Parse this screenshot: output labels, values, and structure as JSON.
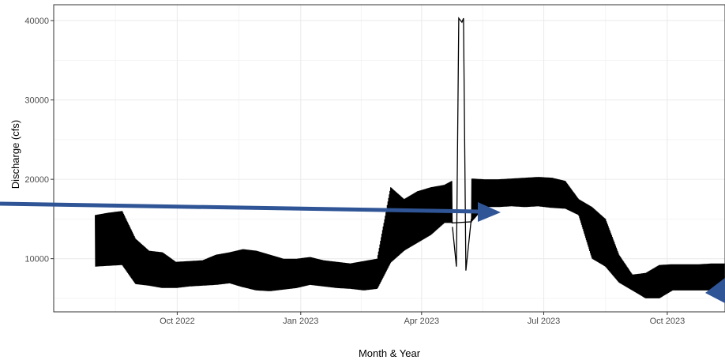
{
  "chart_data": {
    "type": "line",
    "title": "",
    "xlabel": "Month & Year",
    "ylabel": "Discharge (cfs)",
    "x_tick_labels": [
      "Oct 2022",
      "Jan 2023",
      "Apr 2023",
      "Jul 2023",
      "Oct 2023"
    ],
    "y_tick_labels": [
      "10000",
      "20000",
      "30000",
      "40000"
    ],
    "y_ticks": [
      10000,
      20000,
      30000,
      40000
    ],
    "ylim": [
      3300,
      42000
    ],
    "grid": true,
    "series_color": "#000000",
    "arrow_color": "#2f5597",
    "series": [
      {
        "band_start": "2022-08-01",
        "band_low": [
          9000,
          9100,
          9200,
          6800,
          6600,
          6300,
          6300,
          6500,
          6600,
          6700,
          6900,
          6400,
          6000,
          5900,
          6100,
          6300,
          6700,
          6500,
          6300,
          6200,
          6000,
          6200,
          9500,
          11000,
          12000,
          13000,
          14500,
          14500,
          14600,
          16500,
          16500,
          16600,
          16500,
          16600,
          16400,
          16300,
          15500,
          10000,
          9000,
          7000,
          6000,
          5000,
          5000,
          6000,
          6000,
          6000,
          6000,
          6000
        ],
        "band_high": [
          15500,
          15800,
          16000,
          12500,
          11000,
          10800,
          9600,
          9700,
          9800,
          10500,
          10800,
          11200,
          11000,
          10500,
          10000,
          10000,
          10200,
          9800,
          9600,
          9400,
          9700,
          10000,
          19000,
          17500,
          18500,
          19000,
          19300,
          20200,
          20100,
          20000,
          20000,
          20100,
          20200,
          20300,
          20200,
          19800,
          17500,
          16500,
          15000,
          10500,
          8000,
          8200,
          9200,
          9300,
          9300,
          9300,
          9400,
          9400
        ],
        "spike": {
          "start": "2023-04-24",
          "end": "2023-05-08",
          "peak": 40300
        }
      }
    ]
  }
}
